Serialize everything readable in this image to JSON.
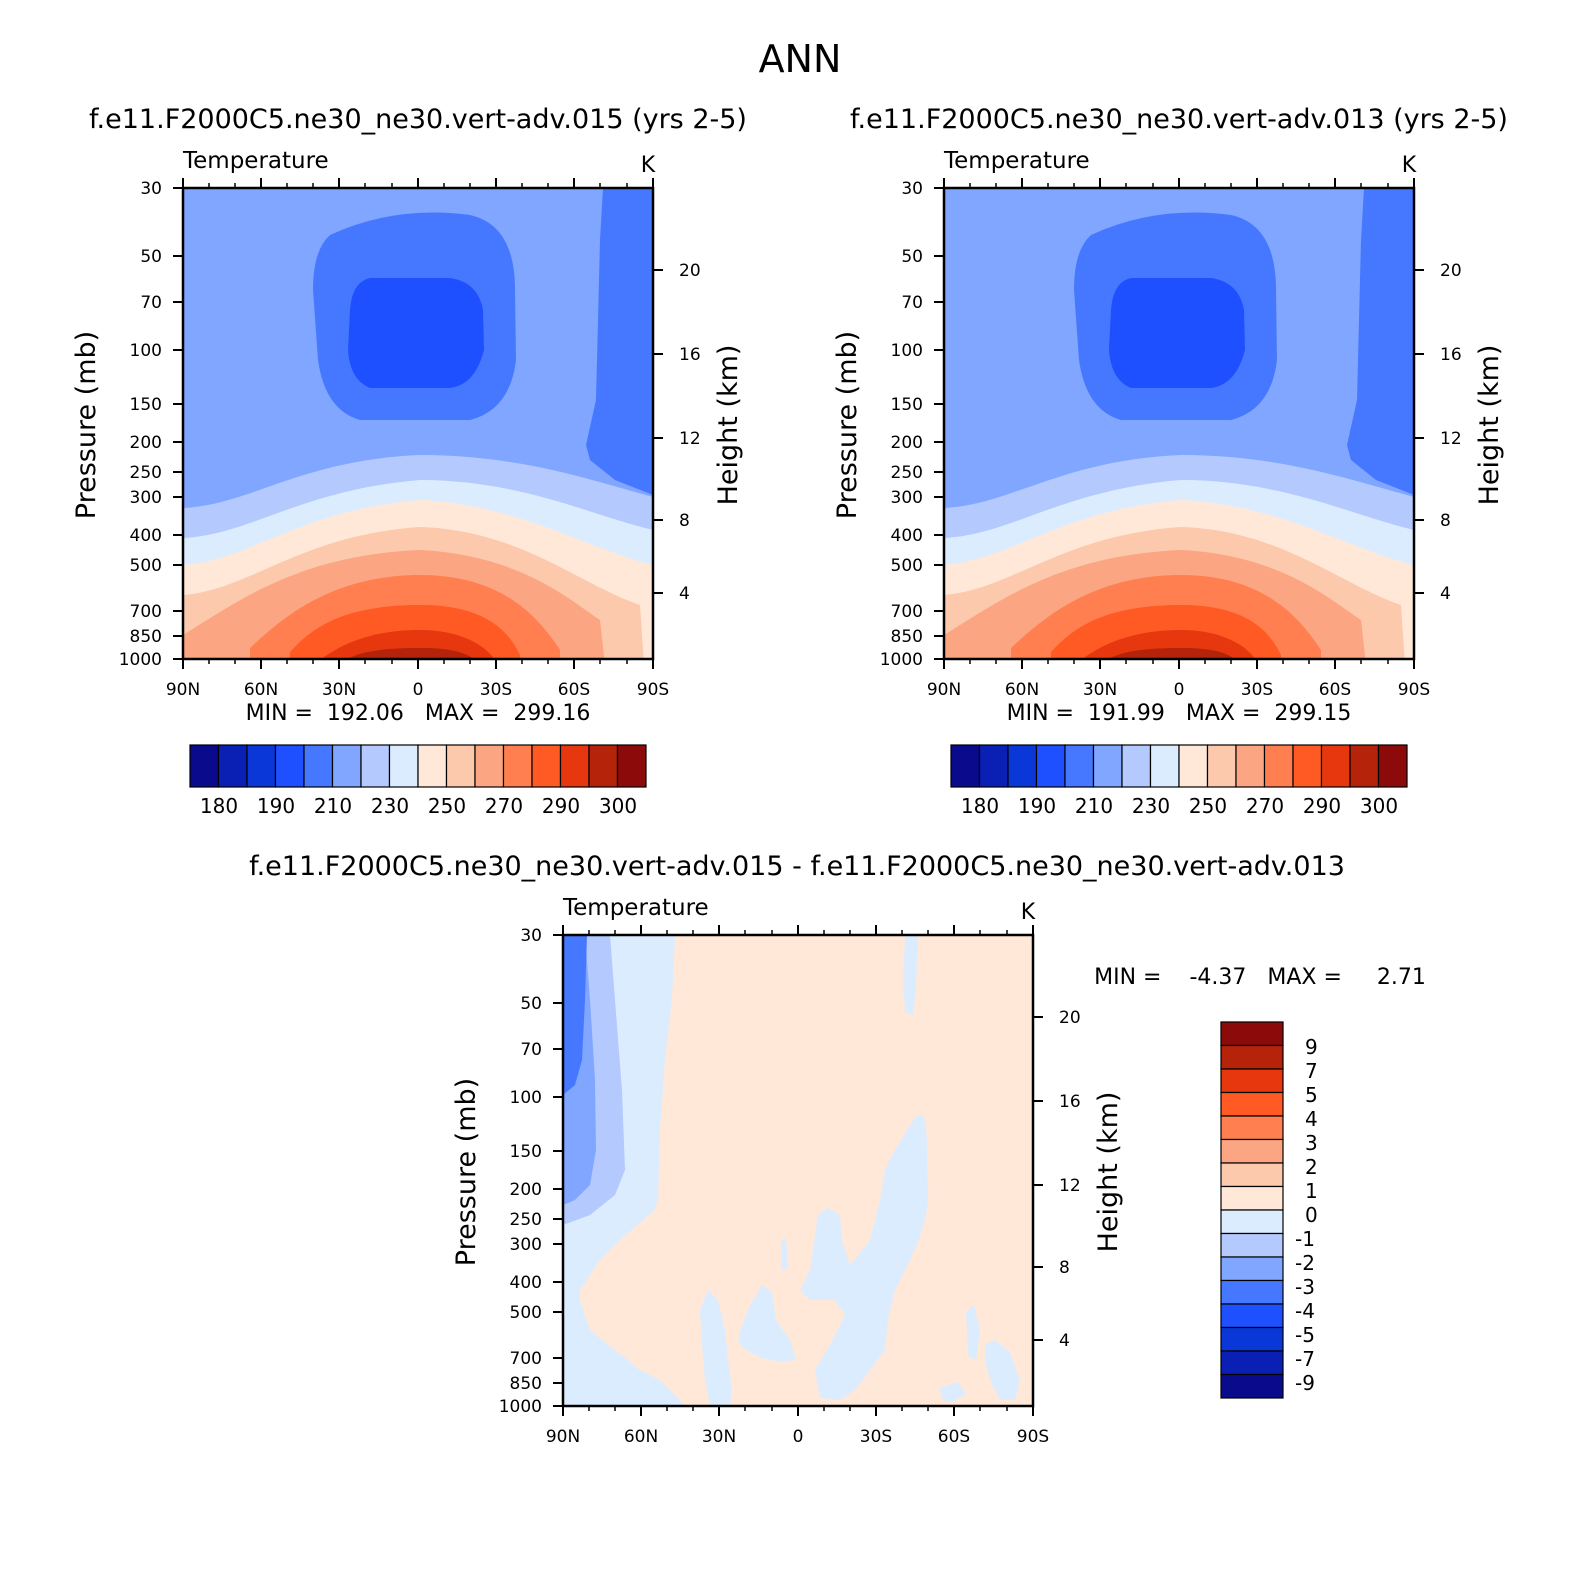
{
  "figure": {
    "title": "ANN"
  },
  "chart_data": [
    {
      "id": "p1",
      "type": "contour",
      "case_title": "f.e11.F2000C5.ne30_ne30.vert-adv.015 (yrs 2-5)",
      "variable": "Temperature",
      "units": "K",
      "ylabel": "Pressure (mb)",
      "y2label": "Height (km)",
      "x_ticks": [
        "90N",
        "60N",
        "30N",
        "0",
        "30S",
        "60S",
        "90S"
      ],
      "y_ticks": [
        "30",
        "50",
        "70",
        "100",
        "150",
        "200",
        "250",
        "300",
        "400",
        "500",
        "700",
        "850",
        "1000"
      ],
      "y2_ticks": [
        "20",
        "16",
        "12",
        "8",
        "4"
      ],
      "stats_text": "MIN =  192.06   MAX =  299.16",
      "min": 192.06,
      "max": 299.16
    },
    {
      "id": "p2",
      "type": "contour",
      "case_title": "f.e11.F2000C5.ne30_ne30.vert-adv.013 (yrs 2-5)",
      "variable": "Temperature",
      "units": "K",
      "ylabel": "Pressure (mb)",
      "y2label": "Height (km)",
      "x_ticks": [
        "90N",
        "60N",
        "30N",
        "0",
        "30S",
        "60S",
        "90S"
      ],
      "y_ticks": [
        "30",
        "50",
        "70",
        "100",
        "150",
        "200",
        "250",
        "300",
        "400",
        "500",
        "700",
        "850",
        "1000"
      ],
      "y2_ticks": [
        "20",
        "16",
        "12",
        "8",
        "4"
      ],
      "stats_text": "MIN =  191.99   MAX =  299.15",
      "min": 191.99,
      "max": 299.15
    },
    {
      "id": "p3",
      "type": "contour",
      "case_title": "f.e11.F2000C5.ne30_ne30.vert-adv.015 - f.e11.F2000C5.ne30_ne30.vert-adv.013",
      "variable": "Temperature",
      "units": "K",
      "ylabel": "Pressure (mb)",
      "y2label": "Height (km)",
      "x_ticks": [
        "90N",
        "60N",
        "30N",
        "0",
        "30S",
        "60S",
        "90S"
      ],
      "y_ticks": [
        "30",
        "50",
        "70",
        "100",
        "150",
        "200",
        "250",
        "300",
        "400",
        "500",
        "700",
        "850",
        "1000"
      ],
      "y2_ticks": [
        "20",
        "16",
        "12",
        "8",
        "4"
      ],
      "stats_text": "MIN =    -4.37   MAX =     2.71",
      "min": -4.37,
      "max": 2.71
    }
  ],
  "colorbars": {
    "temperature": {
      "colors": [
        "#0a0a8c",
        "#0a1fb4",
        "#0a37d7",
        "#1e50ff",
        "#4678ff",
        "#80a6ff",
        "#b4caff",
        "#dcecff",
        "#ffe8d8",
        "#fcc9ad",
        "#fba582",
        "#ff7f50",
        "#ff5a23",
        "#e6370f",
        "#b4230a",
        "#8c0a0a"
      ],
      "labels": [
        "180",
        "190",
        "210",
        "230",
        "250",
        "270",
        "290",
        "300"
      ]
    },
    "difference": {
      "colors": [
        "#8c0a0a",
        "#b4230a",
        "#e6370f",
        "#ff5a23",
        "#ff7f50",
        "#fba582",
        "#fcc9ad",
        "#ffe8d8",
        "#dcecff",
        "#b4caff",
        "#80a6ff",
        "#4678ff",
        "#1e50ff",
        "#0a37d7",
        "#0a1fb4",
        "#0a0a8c"
      ],
      "labels": [
        "9",
        "7",
        "5",
        "4",
        "3",
        "2",
        "1",
        "0",
        "-1",
        "-2",
        "-3",
        "-4",
        "-5",
        "-7",
        "-9"
      ]
    }
  }
}
